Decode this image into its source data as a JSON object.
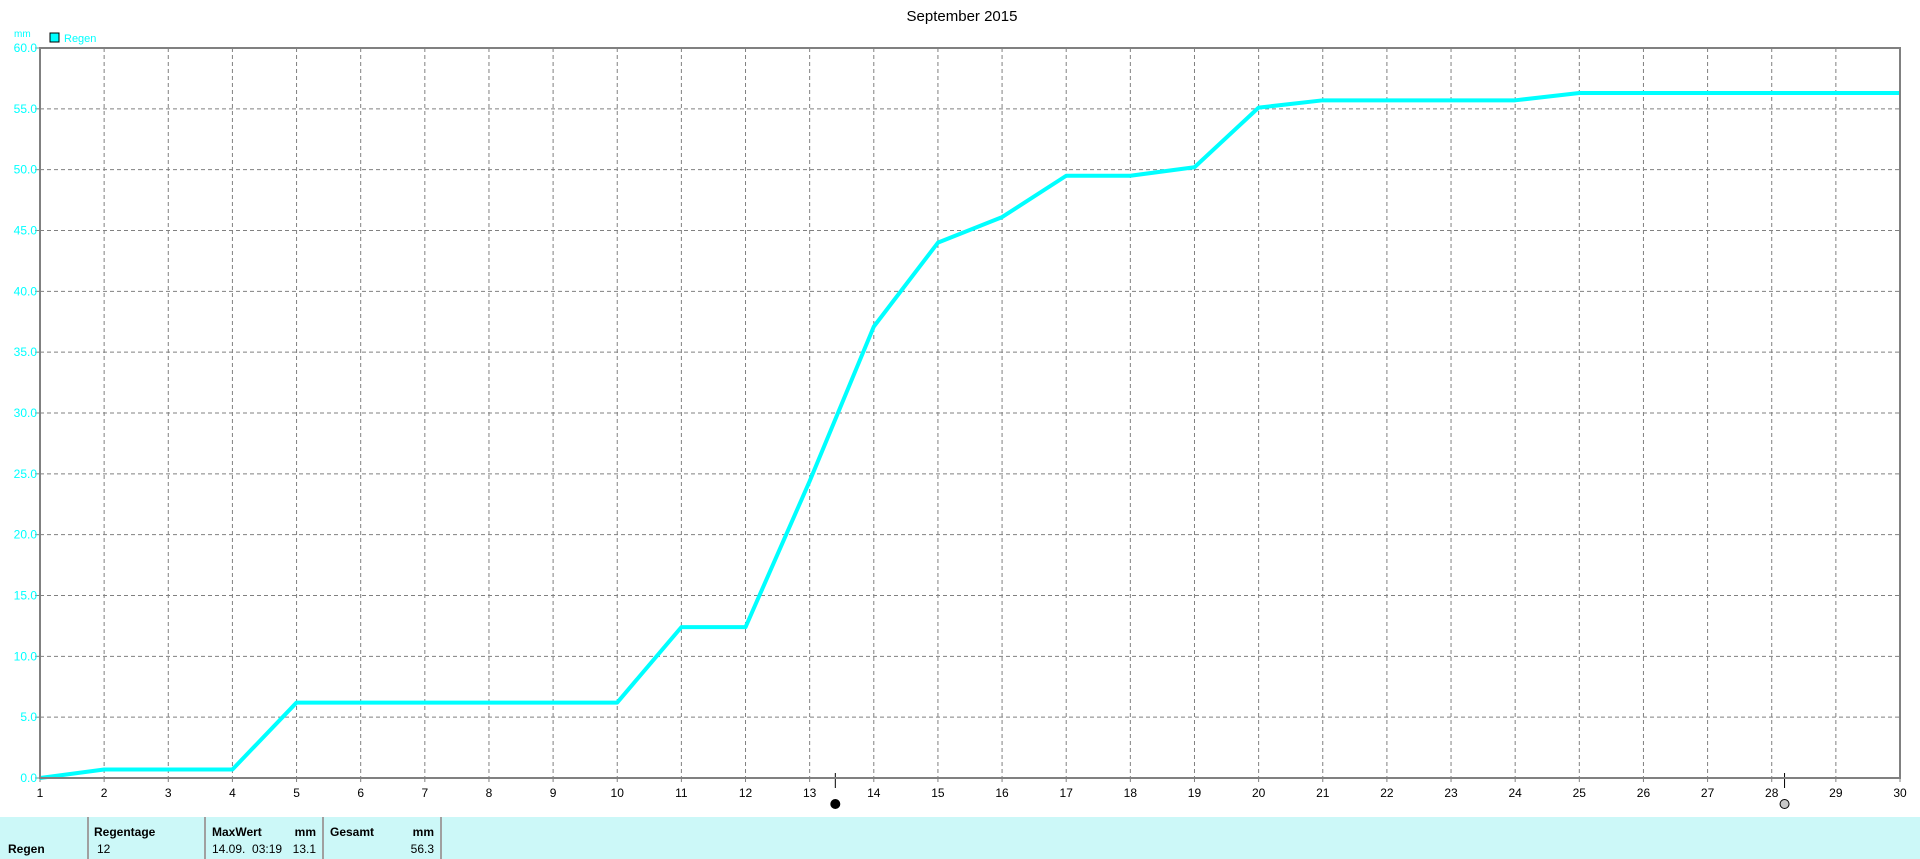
{
  "chart_data": {
    "type": "line",
    "title": "September 2015",
    "ylabel": "mm",
    "xlim": [
      1,
      30
    ],
    "ylim": [
      0,
      60
    ],
    "yticks": [
      "0.0",
      "5.0",
      "10.0",
      "15.0",
      "20.0",
      "25.0",
      "30.0",
      "35.0",
      "40.0",
      "45.0",
      "50.0",
      "55.0",
      "60.0"
    ],
    "xticks": [
      "1",
      "2",
      "3",
      "4",
      "5",
      "6",
      "7",
      "8",
      "9",
      "10",
      "11",
      "12",
      "13",
      "14",
      "15",
      "16",
      "17",
      "18",
      "19",
      "20",
      "21",
      "22",
      "23",
      "24",
      "25",
      "26",
      "27",
      "28",
      "29",
      "30"
    ],
    "grid": true,
    "legend_position": "top-left",
    "series": [
      {
        "name": "Regen",
        "color": "#00ffff",
        "x": [
          1,
          2,
          3,
          4,
          5,
          6,
          7,
          8,
          9,
          10,
          11,
          12,
          13,
          14,
          15,
          16,
          17,
          18,
          19,
          20,
          21,
          22,
          23,
          24,
          25,
          26,
          27,
          28,
          29,
          30
        ],
        "values": [
          0,
          0.7,
          0.7,
          0.7,
          6.2,
          6.2,
          6.2,
          6.2,
          6.2,
          6.2,
          12.4,
          12.4,
          24.4,
          37.1,
          44.0,
          46.1,
          49.5,
          49.5,
          50.2,
          55.1,
          55.7,
          55.7,
          55.7,
          55.7,
          56.3,
          56.3,
          56.3,
          56.3,
          56.3,
          56.3
        ]
      }
    ],
    "moon_phases": [
      {
        "day": 13.4,
        "phase": "new-moon"
      },
      {
        "day": 28.2,
        "phase": "full-moon"
      }
    ]
  },
  "summary": {
    "row_label": "Regen",
    "regentage_header": "Regentage",
    "regentage_value": "12",
    "maxwert_header": "MaxWert",
    "maxwert_unit": "mm",
    "maxwert_time": "14.09.  03:19",
    "maxwert_value": "13.1",
    "gesamt_header": "Gesamt",
    "gesamt_unit": "mm",
    "gesamt_value": "56.3"
  },
  "colors": {
    "series": "#00ffff",
    "band": "#ccf8f8",
    "grid": "#808080"
  }
}
